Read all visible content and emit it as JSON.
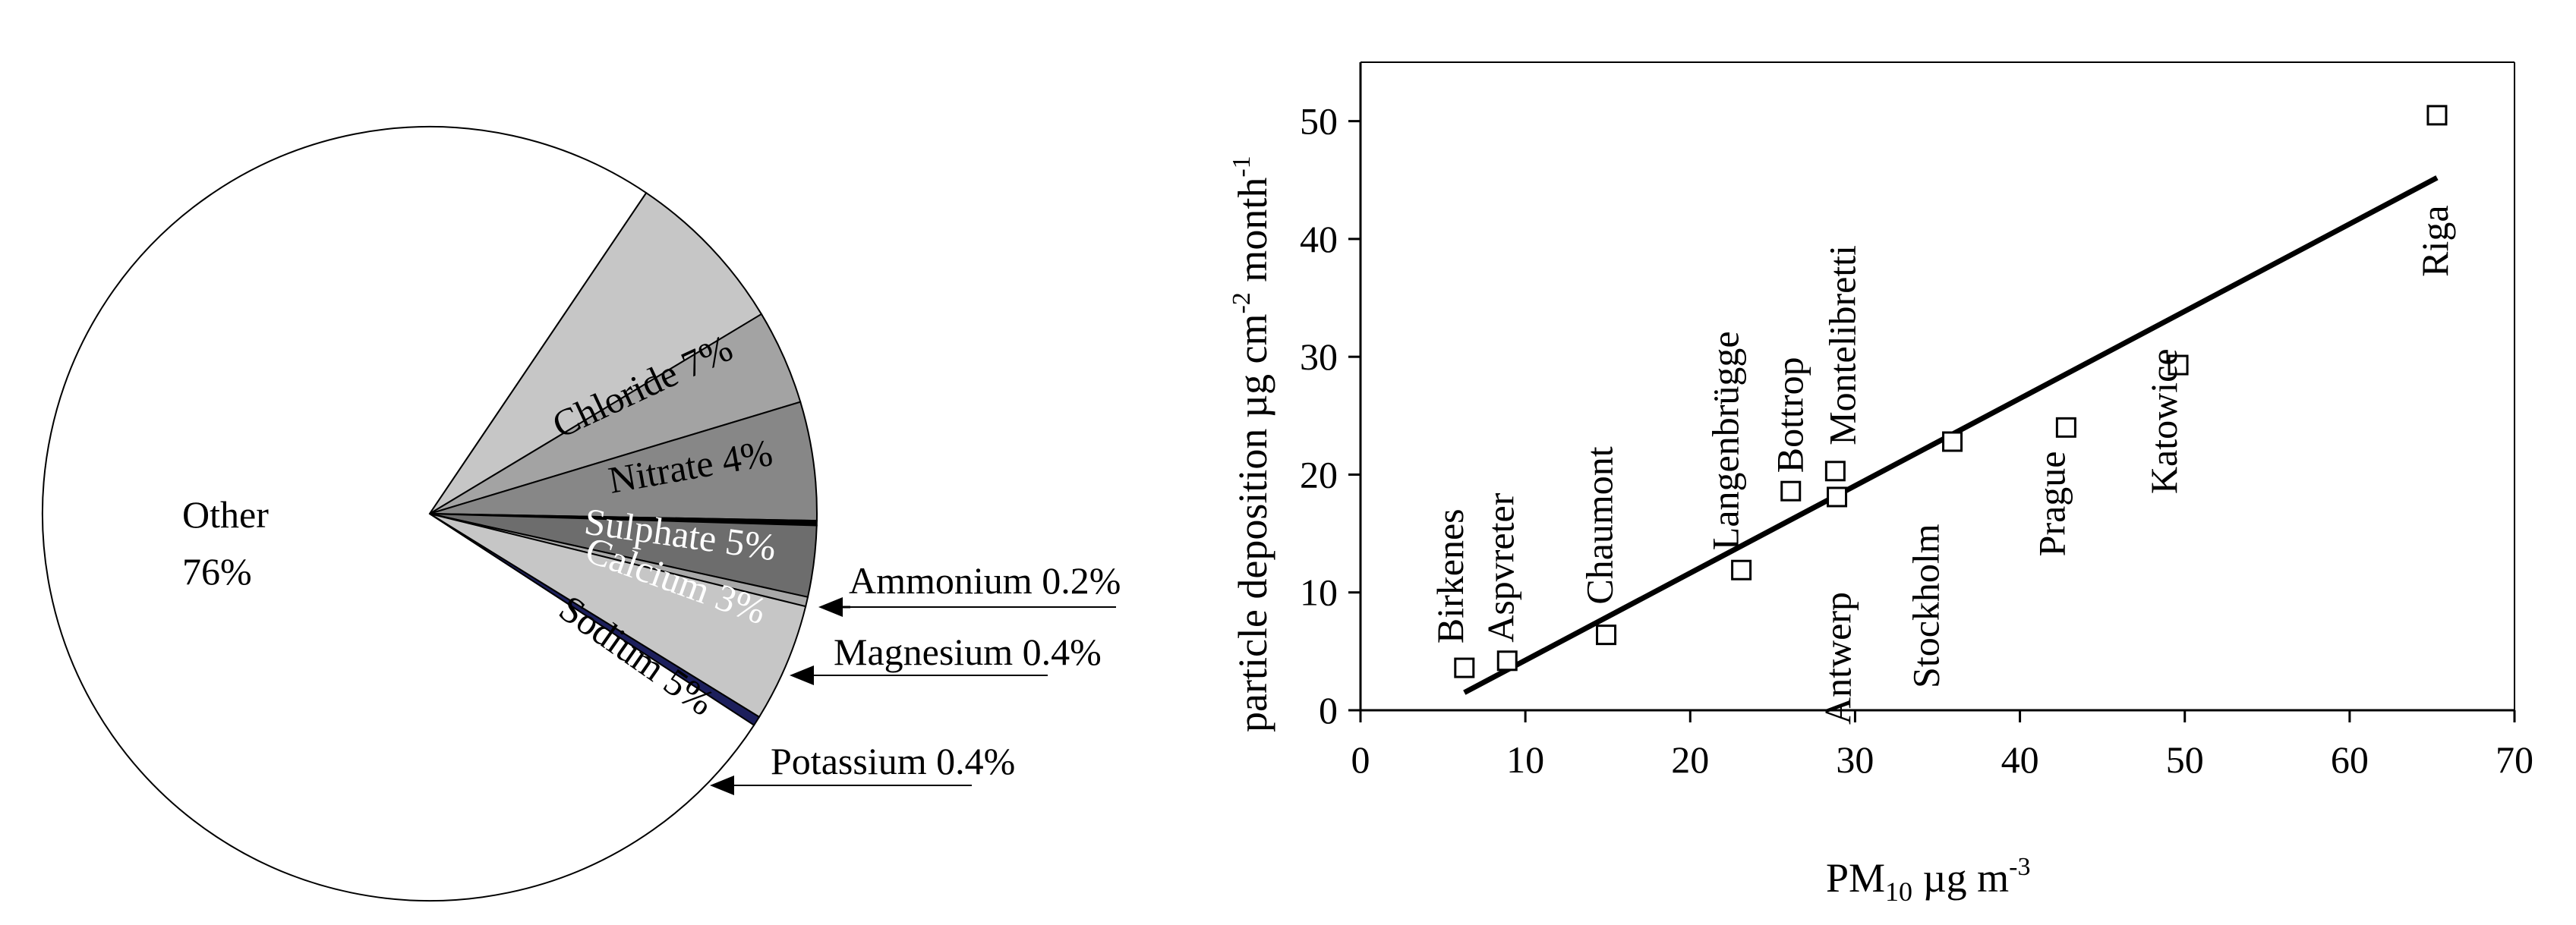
{
  "chart_data": [
    {
      "type": "pie",
      "title": "",
      "slices": [
        {
          "label": "Other",
          "value_text": "76%",
          "value": 76,
          "color": "#ffffff",
          "label_style": "inside-black"
        },
        {
          "label": "Chloride",
          "value_text": "7%",
          "value": 7,
          "color": "#c6c6c6",
          "label_style": "inside-black"
        },
        {
          "label": "Nitrate",
          "value_text": "4%",
          "value": 4,
          "color": "#a3a3a3",
          "label_style": "inside-black"
        },
        {
          "label": "Sulphate",
          "value_text": "5%",
          "value": 5,
          "color": "#878787",
          "label_style": "inside-white"
        },
        {
          "label": "Ammonium",
          "value_text": "0.2%",
          "value": 0.2,
          "color": "#000000",
          "label_style": "callout"
        },
        {
          "label": "Calcium",
          "value_text": "3%",
          "value": 3,
          "color": "#6d6d6d",
          "label_style": "inside-white"
        },
        {
          "label": "Magnesium",
          "value_text": "0.4%",
          "value": 0.4,
          "color": "#a8a8a8",
          "label_style": "callout"
        },
        {
          "label": "Sodium",
          "value_text": "5%",
          "value": 5,
          "color": "#c6c6c6",
          "label_style": "inside-black"
        },
        {
          "label": "Potassium",
          "value_text": "0.4%",
          "value": 0.4,
          "color": "#1c1f5c",
          "label_style": "callout"
        }
      ]
    },
    {
      "type": "scatter",
      "title": "",
      "xlabel": "PM",
      "xlabel_sub": "10",
      "xlabel_unit": "µg m",
      "xlabel_sup": "-3",
      "ylabel": "particle deposition µg cm",
      "ylabel_sup1": "-2",
      "ylabel_mid": " month",
      "ylabel_sup2": "-1",
      "xlim": [
        0,
        70
      ],
      "ylim": [
        0,
        55
      ],
      "xticks": [
        0,
        10,
        20,
        30,
        40,
        50,
        60,
        70
      ],
      "yticks": [
        0,
        10,
        20,
        30,
        40,
        50
      ],
      "grid": false,
      "points": [
        {
          "name": "Birkenes",
          "x": 6.3,
          "y": 3.6
        },
        {
          "name": "Aspvreter",
          "x": 8.9,
          "y": 4.2
        },
        {
          "name": "Chaumont",
          "x": 14.9,
          "y": 6.4
        },
        {
          "name": "Langenbrügge",
          "x": 23.1,
          "y": 11.9
        },
        {
          "name": "Bottrop",
          "x": 26.1,
          "y": 18.6
        },
        {
          "name": "Montelibretti",
          "x": 28.8,
          "y": 20.3
        },
        {
          "name": "Antwerp",
          "x": 28.9,
          "y": 18.1
        },
        {
          "name": "Stockholm",
          "x": 35.9,
          "y": 22.8
        },
        {
          "name": "Prague",
          "x": 42.8,
          "y": 24.0
        },
        {
          "name": "Katowice",
          "x": 49.6,
          "y": 29.3
        },
        {
          "name": "Riga",
          "x": 65.3,
          "y": 50.5
        }
      ],
      "trendline": {
        "x0": 6.3,
        "y0": 1.5,
        "x1": 65.3,
        "y1": 45.2
      }
    }
  ]
}
